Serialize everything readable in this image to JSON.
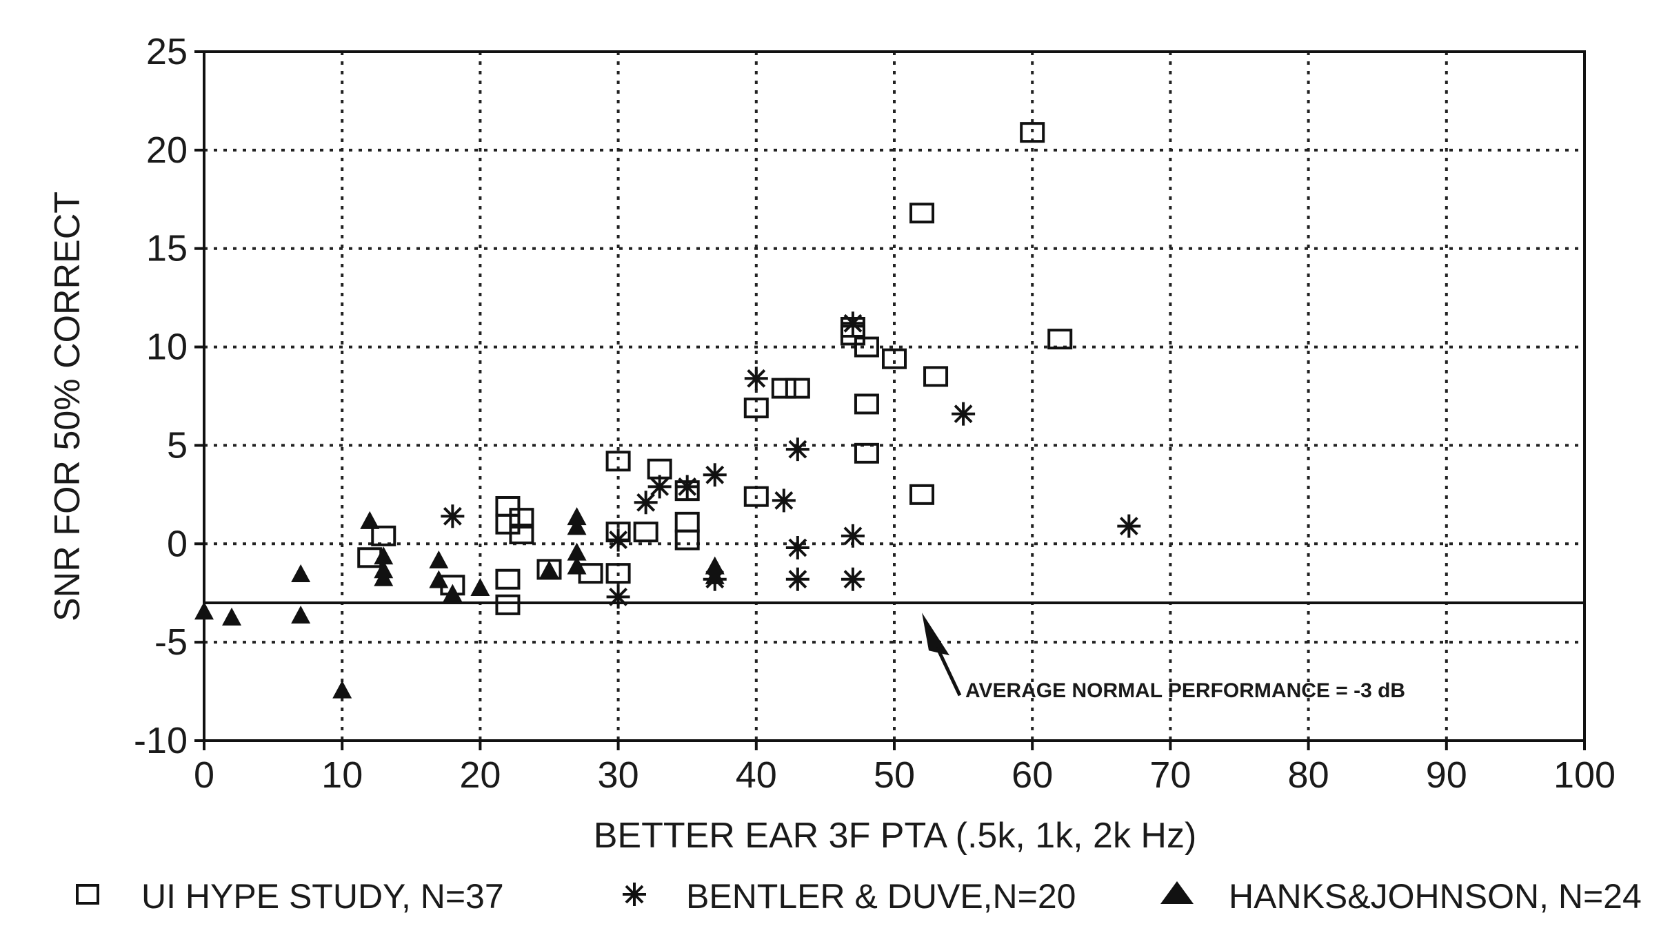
{
  "chart_data": {
    "type": "scatter",
    "title": "",
    "xlabel": "BETTER EAR 3F PTA (.5k, 1k, 2k Hz)",
    "ylabel": "SNR FOR 50% CORRECT",
    "xlim": [
      0,
      100
    ],
    "ylim": [
      -10,
      25
    ],
    "xticks": [
      0,
      10,
      20,
      30,
      40,
      50,
      60,
      70,
      80,
      90,
      100
    ],
    "yticks": [
      -10,
      -5,
      0,
      5,
      10,
      15,
      20,
      25
    ],
    "xtick_labels": [
      "0",
      "10",
      "20",
      "30",
      "40",
      "50",
      "60",
      "70",
      "80",
      "90",
      "100"
    ],
    "ytick_labels": [
      "-10",
      "-5",
      "0",
      "5",
      "10",
      "15",
      "20",
      "25"
    ],
    "grid": true,
    "legend_placement": "bottom",
    "reference_line": {
      "y": -3,
      "label": "AVERAGE NORMAL PERFORMANCE = -3 dB",
      "arrow_target": [
        52,
        -3.5
      ]
    },
    "series": [
      {
        "name": "UI HYPE STUDY, N=37",
        "marker": "square",
        "points": [
          [
            12,
            -0.7
          ],
          [
            13,
            0.4
          ],
          [
            18,
            -2.1
          ],
          [
            22,
            1.9
          ],
          [
            22,
            1.0
          ],
          [
            22,
            -1.8
          ],
          [
            22,
            -3.1
          ],
          [
            23,
            1.3
          ],
          [
            23,
            0.5
          ],
          [
            25,
            -1.3
          ],
          [
            28,
            -1.5
          ],
          [
            30,
            4.2
          ],
          [
            30,
            0.6
          ],
          [
            30,
            -1.5
          ],
          [
            32,
            0.6
          ],
          [
            33,
            3.8
          ],
          [
            35,
            2.7
          ],
          [
            35,
            1.1
          ],
          [
            35,
            0.2
          ],
          [
            40,
            6.9
          ],
          [
            40,
            2.4
          ],
          [
            42,
            7.9
          ],
          [
            43,
            7.9
          ],
          [
            47,
            11.0
          ],
          [
            47,
            10.6
          ],
          [
            48,
            10.0
          ],
          [
            48,
            7.1
          ],
          [
            48,
            4.6
          ],
          [
            50,
            9.4
          ],
          [
            52,
            16.8
          ],
          [
            52,
            2.5
          ],
          [
            53,
            8.5
          ],
          [
            60,
            20.9
          ],
          [
            62,
            10.4
          ]
        ]
      },
      {
        "name": "BENTLER & DUVE,N=20",
        "marker": "asterisk",
        "points": [
          [
            18,
            1.4
          ],
          [
            30,
            0.2
          ],
          [
            30,
            -2.7
          ],
          [
            32,
            2.1
          ],
          [
            33,
            2.9
          ],
          [
            35,
            2.9
          ],
          [
            37,
            3.5
          ],
          [
            37,
            -1.8
          ],
          [
            40,
            8.4
          ],
          [
            42,
            2.2
          ],
          [
            43,
            4.8
          ],
          [
            43,
            -0.2
          ],
          [
            43,
            -1.8
          ],
          [
            47,
            11.2
          ],
          [
            47,
            0.4
          ],
          [
            47,
            -1.8
          ],
          [
            55,
            6.6
          ],
          [
            67,
            0.9
          ]
        ]
      },
      {
        "name": "HANKS&JOHNSON, N=24",
        "marker": "triangle",
        "points": [
          [
            0,
            -3.5
          ],
          [
            2,
            -3.8
          ],
          [
            7,
            -1.6
          ],
          [
            7,
            -3.7
          ],
          [
            10,
            -7.5
          ],
          [
            12,
            1.1
          ],
          [
            13,
            -0.7
          ],
          [
            13,
            -1.4
          ],
          [
            13,
            -1.8
          ],
          [
            17,
            -0.9
          ],
          [
            17,
            -1.9
          ],
          [
            18,
            -2.6
          ],
          [
            20,
            -2.3
          ],
          [
            25,
            -1.4
          ],
          [
            27,
            1.3
          ],
          [
            27,
            0.8
          ],
          [
            27,
            -0.5
          ],
          [
            27,
            -1.2
          ],
          [
            37,
            -1.2
          ],
          [
            37,
            -1.7
          ]
        ]
      }
    ]
  }
}
